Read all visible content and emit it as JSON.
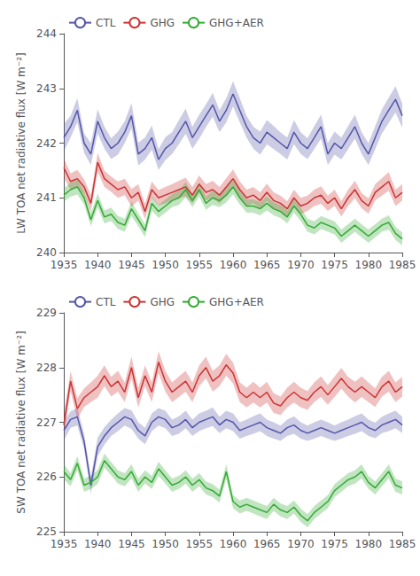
{
  "chart_data": [
    {
      "type": "line",
      "x": [
        1935,
        1936,
        1937,
        1938,
        1939,
        1940,
        1941,
        1942,
        1943,
        1944,
        1945,
        1946,
        1947,
        1948,
        1949,
        1950,
        1951,
        1952,
        1953,
        1954,
        1955,
        1956,
        1957,
        1958,
        1959,
        1960,
        1961,
        1962,
        1963,
        1964,
        1965,
        1966,
        1967,
        1968,
        1969,
        1970,
        1971,
        1972,
        1973,
        1974,
        1975,
        1976,
        1977,
        1978,
        1979,
        1980,
        1981,
        1982,
        1983,
        1984,
        1985
      ],
      "xlim": [
        1935,
        1985
      ],
      "xticks": [
        1935,
        1940,
        1945,
        1950,
        1955,
        1960,
        1965,
        1970,
        1975,
        1980,
        1985
      ],
      "ylim": [
        240,
        244
      ],
      "yticks": [
        240,
        241,
        242,
        243,
        244
      ],
      "ylabel": "LW TOA net radiative flux [W m⁻²]",
      "legend": "upper left",
      "grid": false,
      "series": [
        {
          "name": "CTL",
          "color": "#5555aa",
          "values": [
            242.1,
            242.3,
            242.6,
            242.0,
            241.8,
            242.4,
            242.1,
            241.9,
            242.0,
            242.2,
            242.5,
            241.8,
            241.9,
            242.1,
            241.7,
            241.9,
            242.0,
            242.2,
            242.4,
            242.1,
            242.3,
            242.5,
            242.7,
            242.4,
            242.6,
            242.9,
            242.6,
            242.3,
            242.1,
            242.0,
            242.2,
            242.1,
            242.0,
            241.9,
            242.2,
            242.0,
            241.9,
            242.1,
            242.3,
            241.8,
            242.0,
            241.9,
            242.1,
            242.3,
            242.0,
            241.8,
            242.1,
            242.4,
            242.6,
            242.8,
            242.5
          ],
          "std": [
            0.25,
            0.2,
            0.22,
            0.18,
            0.2,
            0.22,
            0.2,
            0.19,
            0.21,
            0.2,
            0.23,
            0.21,
            0.2,
            0.22,
            0.19,
            0.21,
            0.2,
            0.22,
            0.23,
            0.2,
            0.22,
            0.21,
            0.22,
            0.2,
            0.22,
            0.23,
            0.22,
            0.2,
            0.2,
            0.21,
            0.22,
            0.21,
            0.2,
            0.2,
            0.22,
            0.2,
            0.19,
            0.21,
            0.22,
            0.2,
            0.21,
            0.2,
            0.21,
            0.22,
            0.2,
            0.2,
            0.21,
            0.22,
            0.23,
            0.24,
            0.22
          ]
        },
        {
          "name": "GHG",
          "color": "#cc3333",
          "values": [
            241.55,
            241.3,
            241.35,
            241.2,
            240.9,
            241.65,
            241.35,
            241.25,
            241.15,
            241.2,
            241.0,
            241.1,
            240.75,
            241.15,
            241.0,
            241.05,
            241.1,
            241.15,
            241.2,
            241.05,
            241.25,
            241.1,
            241.15,
            241.05,
            241.2,
            241.35,
            241.15,
            241.0,
            241.05,
            240.95,
            241.1,
            240.95,
            240.9,
            240.8,
            241.0,
            240.85,
            240.9,
            241.0,
            241.05,
            240.9,
            241.0,
            240.8,
            241.0,
            241.15,
            240.95,
            240.85,
            241.1,
            241.2,
            241.3,
            241.0,
            241.1
          ],
          "std": [
            0.18,
            0.15,
            0.16,
            0.14,
            0.15,
            0.17,
            0.15,
            0.14,
            0.15,
            0.15,
            0.16,
            0.15,
            0.14,
            0.15,
            0.14,
            0.15,
            0.15,
            0.16,
            0.17,
            0.15,
            0.16,
            0.15,
            0.16,
            0.15,
            0.16,
            0.17,
            0.15,
            0.15,
            0.15,
            0.15,
            0.16,
            0.15,
            0.14,
            0.14,
            0.15,
            0.15,
            0.14,
            0.15,
            0.16,
            0.14,
            0.15,
            0.14,
            0.15,
            0.16,
            0.14,
            0.14,
            0.15,
            0.16,
            0.17,
            0.15,
            0.15
          ]
        },
        {
          "name": "GHG+AER",
          "color": "#33aa33",
          "values": [
            241.05,
            241.15,
            241.2,
            241.0,
            240.6,
            240.95,
            240.65,
            240.7,
            240.55,
            240.5,
            240.8,
            240.6,
            240.4,
            240.9,
            240.75,
            240.85,
            240.95,
            241.0,
            241.15,
            240.95,
            241.15,
            240.9,
            241.0,
            240.95,
            241.05,
            241.2,
            241.0,
            240.85,
            240.85,
            240.8,
            240.9,
            240.8,
            240.75,
            240.65,
            240.85,
            240.7,
            240.5,
            240.45,
            240.55,
            240.5,
            240.45,
            240.3,
            240.4,
            240.5,
            240.4,
            240.3,
            240.4,
            240.5,
            240.55,
            240.35,
            240.25
          ],
          "std": [
            0.12,
            0.13,
            0.14,
            0.12,
            0.12,
            0.13,
            0.12,
            0.12,
            0.12,
            0.12,
            0.13,
            0.12,
            0.12,
            0.13,
            0.12,
            0.12,
            0.12,
            0.13,
            0.14,
            0.12,
            0.13,
            0.12,
            0.13,
            0.12,
            0.13,
            0.14,
            0.12,
            0.12,
            0.12,
            0.12,
            0.13,
            0.12,
            0.12,
            0.12,
            0.12,
            0.12,
            0.12,
            0.12,
            0.12,
            0.12,
            0.12,
            0.12,
            0.12,
            0.12,
            0.12,
            0.12,
            0.12,
            0.12,
            0.13,
            0.12,
            0.12
          ]
        }
      ]
    },
    {
      "type": "line",
      "x": [
        1935,
        1936,
        1937,
        1938,
        1939,
        1940,
        1941,
        1942,
        1943,
        1944,
        1945,
        1946,
        1947,
        1948,
        1949,
        1950,
        1951,
        1952,
        1953,
        1954,
        1955,
        1956,
        1957,
        1958,
        1959,
        1960,
        1961,
        1962,
        1963,
        1964,
        1965,
        1966,
        1967,
        1968,
        1969,
        1970,
        1971,
        1972,
        1973,
        1974,
        1975,
        1976,
        1977,
        1978,
        1979,
        1980,
        1981,
        1982,
        1983,
        1984,
        1985
      ],
      "xlim": [
        1935,
        1985
      ],
      "xticks": [
        1935,
        1940,
        1945,
        1950,
        1955,
        1960,
        1965,
        1970,
        1975,
        1980,
        1985
      ],
      "ylim": [
        225,
        229
      ],
      "yticks": [
        225,
        226,
        227,
        228,
        229
      ],
      "ylabel": "SW TOA net radiative flux [W m⁻²]",
      "legend": "upper left",
      "grid": false,
      "series": [
        {
          "name": "CTL",
          "color": "#5555aa",
          "values": [
            226.85,
            227.05,
            227.1,
            226.65,
            225.85,
            226.55,
            226.75,
            226.9,
            227.0,
            227.1,
            227.05,
            226.85,
            226.75,
            227.0,
            227.1,
            227.05,
            226.9,
            226.95,
            227.05,
            226.9,
            227.0,
            227.05,
            227.1,
            226.95,
            227.05,
            227.0,
            226.85,
            226.9,
            226.95,
            227.0,
            226.9,
            226.85,
            226.8,
            226.9,
            226.95,
            226.85,
            226.8,
            226.85,
            226.9,
            226.85,
            226.8,
            226.85,
            226.9,
            226.95,
            227.0,
            226.9,
            226.85,
            226.95,
            227.0,
            227.05,
            226.95
          ],
          "std": [
            0.18,
            0.15,
            0.16,
            0.14,
            0.15,
            0.17,
            0.16,
            0.15,
            0.16,
            0.16,
            0.17,
            0.15,
            0.15,
            0.16,
            0.16,
            0.16,
            0.15,
            0.16,
            0.16,
            0.15,
            0.16,
            0.16,
            0.17,
            0.15,
            0.16,
            0.16,
            0.15,
            0.15,
            0.16,
            0.16,
            0.15,
            0.15,
            0.14,
            0.15,
            0.16,
            0.15,
            0.14,
            0.15,
            0.15,
            0.15,
            0.14,
            0.15,
            0.15,
            0.16,
            0.16,
            0.15,
            0.14,
            0.15,
            0.16,
            0.16,
            0.15
          ]
        },
        {
          "name": "GHG",
          "color": "#cc3333",
          "values": [
            226.95,
            227.75,
            227.25,
            227.45,
            227.55,
            227.65,
            227.85,
            227.65,
            227.75,
            227.55,
            228.0,
            227.45,
            227.85,
            227.55,
            228.1,
            227.75,
            227.55,
            227.65,
            227.75,
            227.55,
            227.85,
            228.0,
            227.75,
            227.85,
            228.05,
            227.9,
            227.55,
            227.45,
            227.55,
            227.45,
            227.55,
            227.35,
            227.3,
            227.45,
            227.55,
            227.45,
            227.4,
            227.55,
            227.65,
            227.5,
            227.65,
            227.8,
            227.65,
            227.55,
            227.65,
            227.55,
            227.45,
            227.65,
            227.75,
            227.55,
            227.65
          ],
          "std": [
            0.2,
            0.18,
            0.19,
            0.17,
            0.18,
            0.2,
            0.19,
            0.18,
            0.19,
            0.18,
            0.2,
            0.18,
            0.19,
            0.18,
            0.2,
            0.19,
            0.18,
            0.19,
            0.19,
            0.18,
            0.19,
            0.2,
            0.19,
            0.19,
            0.2,
            0.19,
            0.18,
            0.18,
            0.19,
            0.18,
            0.19,
            0.18,
            0.17,
            0.18,
            0.19,
            0.18,
            0.17,
            0.18,
            0.19,
            0.18,
            0.19,
            0.19,
            0.18,
            0.19,
            0.19,
            0.18,
            0.17,
            0.18,
            0.19,
            0.18,
            0.18
          ]
        },
        {
          "name": "GHG+AER",
          "color": "#33aa33",
          "values": [
            226.1,
            225.95,
            226.25,
            225.85,
            225.9,
            226.0,
            226.3,
            226.15,
            226.0,
            225.95,
            226.1,
            225.85,
            226.0,
            225.9,
            226.15,
            226.0,
            225.85,
            225.9,
            226.0,
            225.85,
            225.95,
            225.8,
            225.75,
            225.65,
            226.1,
            225.55,
            225.45,
            225.5,
            225.45,
            225.4,
            225.35,
            225.5,
            225.4,
            225.35,
            225.45,
            225.3,
            225.2,
            225.35,
            225.45,
            225.55,
            225.75,
            225.85,
            225.95,
            226.0,
            226.1,
            225.9,
            225.8,
            225.95,
            226.1,
            225.85,
            225.8
          ],
          "std": [
            0.14,
            0.12,
            0.13,
            0.12,
            0.12,
            0.13,
            0.13,
            0.12,
            0.12,
            0.12,
            0.13,
            0.12,
            0.12,
            0.12,
            0.13,
            0.12,
            0.12,
            0.12,
            0.12,
            0.12,
            0.12,
            0.12,
            0.12,
            0.12,
            0.13,
            0.12,
            0.12,
            0.12,
            0.12,
            0.12,
            0.12,
            0.12,
            0.12,
            0.12,
            0.12,
            0.12,
            0.12,
            0.12,
            0.12,
            0.12,
            0.12,
            0.12,
            0.12,
            0.12,
            0.13,
            0.12,
            0.12,
            0.12,
            0.13,
            0.12,
            0.12
          ]
        }
      ]
    }
  ]
}
